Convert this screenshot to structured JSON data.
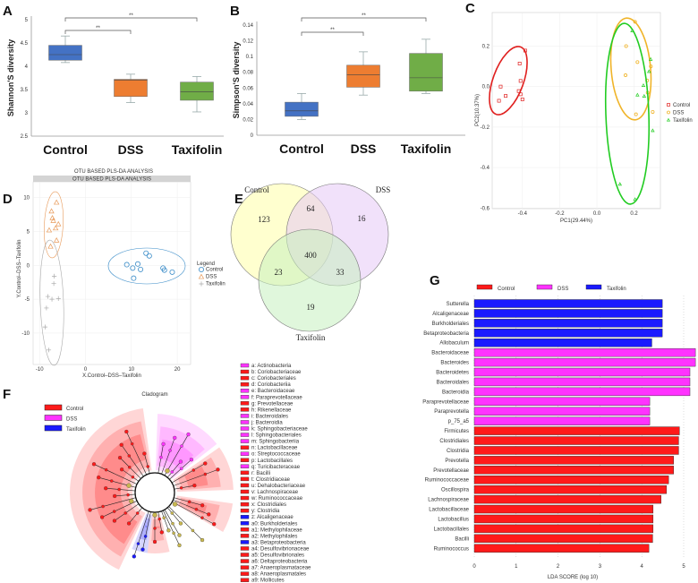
{
  "panel_labels": [
    "A",
    "B",
    "C",
    "D",
    "E",
    "F",
    "G"
  ],
  "chart_data": [
    {
      "panel": "A",
      "type": "box",
      "ylabel": "Shannon'S diversity",
      "categories": [
        "Control",
        "DSS",
        "Taxifolin"
      ],
      "colors": [
        "#4472c4",
        "#ed7d31",
        "#70ad47"
      ],
      "ylim": [
        2.5,
        5
      ],
      "yticks": [
        5,
        4.5,
        4,
        3.5,
        3,
        2.5
      ],
      "boxes": [
        {
          "min": 4.08,
          "q1": 4.13,
          "median": 4.25,
          "q3": 4.45,
          "max": 4.65
        },
        {
          "min": 3.22,
          "q1": 3.35,
          "median": 3.7,
          "q3": 3.72,
          "max": 3.83
        },
        {
          "min": 3.02,
          "q1": 3.27,
          "median": 3.45,
          "q3": 3.66,
          "max": 3.78
        }
      ],
      "significance": [
        {
          "from": "Control",
          "to": "Taxifolin",
          "label": "**"
        },
        {
          "from": "Control",
          "to": "DSS",
          "label": "**"
        }
      ]
    },
    {
      "panel": "B",
      "type": "box",
      "ylabel": "Simpson'S diversity",
      "categories": [
        "Control",
        "DSS",
        "Taxifolin"
      ],
      "colors": [
        "#4472c4",
        "#ed7d31",
        "#70ad47"
      ],
      "ylim": [
        0,
        0.14
      ],
      "yticks": [
        0.14,
        0.12,
        0.1,
        0.08,
        0.06,
        0.04,
        0.02,
        0
      ],
      "boxes": [
        {
          "min": 0.02,
          "q1": 0.024,
          "median": 0.031,
          "q3": 0.042,
          "max": 0.053
        },
        {
          "min": 0.051,
          "q1": 0.061,
          "median": 0.077,
          "q3": 0.089,
          "max": 0.106
        },
        {
          "min": 0.053,
          "q1": 0.056,
          "median": 0.073,
          "q3": 0.104,
          "max": 0.122
        }
      ],
      "significance": [
        {
          "from": "Control",
          "to": "Taxifolin",
          "label": "**"
        },
        {
          "from": "Control",
          "to": "DSS",
          "label": "**"
        }
      ]
    },
    {
      "panel": "C",
      "type": "scatter",
      "xlabel": "PC1(29.44%)",
      "ylabel": "PC2(10.37%)",
      "xticks": [
        -0.4,
        -0.2,
        0.0,
        0.2
      ],
      "xtick_labels": [
        "-0.4",
        "-0.2",
        "0.0",
        "0.2"
      ],
      "yticks": [
        0.2,
        0.0,
        -0.2,
        -0.4,
        -0.6
      ],
      "ytick_labels": [
        "0.2",
        "0.0",
        "-0.2",
        "-0.4",
        "-0.6"
      ],
      "legend_position": "right",
      "series": [
        {
          "name": "Control",
          "marker": "square",
          "color": "#e0201f",
          "points": [
            [
              -0.385,
              0.178
            ],
            [
              -0.415,
              0.114
            ],
            [
              -0.41,
              0.028
            ],
            [
              -0.517,
              0.0
            ],
            [
              -0.42,
              -0.022
            ],
            [
              -0.49,
              -0.046
            ],
            [
              -0.41,
              -0.038
            ],
            [
              -0.4,
              -0.063
            ],
            [
              -0.526,
              -0.07
            ]
          ]
        },
        {
          "name": "DSS",
          "marker": "circle",
          "color": "#f0b429",
          "points": [
            [
              0.205,
              0.32
            ],
            [
              0.157,
              0.2
            ],
            [
              0.218,
              0.121
            ],
            [
              0.154,
              0.056
            ],
            [
              0.29,
              0.1
            ],
            [
              0.27,
              0.03
            ],
            [
              0.273,
              -0.03
            ],
            [
              0.21,
              -0.137
            ],
            [
              0.3,
              -0.125
            ]
          ]
        },
        {
          "name": "Taxifolin",
          "marker": "triangle",
          "color": "#22cc22",
          "points": [
            [
              0.19,
              0.276
            ],
            [
              0.289,
              0.135
            ],
            [
              0.28,
              0.075
            ],
            [
              0.25,
              0.006
            ],
            [
              0.218,
              -0.041
            ],
            [
              0.254,
              -0.047
            ],
            [
              0.3,
              -0.217
            ],
            [
              0.124,
              -0.482
            ],
            [
              0.205,
              -0.557
            ]
          ]
        }
      ]
    },
    {
      "panel": "D",
      "type": "scatter",
      "title": "OTU BASED PLS-DA ANALYSIS",
      "strip": "OTU BASED PLS-DA ANALYSIS",
      "xlabel": "X.Control–DSS–Taxifolin",
      "ylabel": "Y.Control–DSS–Taxifolin",
      "xticks": [
        -10,
        0,
        10,
        20
      ],
      "yticks": [
        10,
        5,
        0,
        -5,
        -10
      ],
      "legend_title": "Legend",
      "legend_position": "right",
      "series": [
        {
          "name": "Control",
          "marker": "circle",
          "color": "#3a8cc8",
          "points": [
            [
              9.0,
              0.1
            ],
            [
              10.3,
              -0.4
            ],
            [
              11.4,
              0.2
            ],
            [
              12.0,
              -0.6
            ],
            [
              10.5,
              -1.9
            ],
            [
              13.2,
              1.8
            ],
            [
              13.9,
              1.4
            ],
            [
              16.9,
              -0.4
            ],
            [
              17.2,
              -0.7
            ],
            [
              18.9,
              -1.0
            ]
          ]
        },
        {
          "name": "DSS",
          "marker": "triangle",
          "color": "#e89a5a",
          "points": [
            [
              -6.3,
              9.3
            ],
            [
              -7.4,
              8.0
            ],
            [
              -7.2,
              7.0
            ],
            [
              -7.0,
              6.6
            ],
            [
              -5.9,
              6.1
            ],
            [
              -6.5,
              5.5
            ],
            [
              -7.9,
              5.2
            ],
            [
              -6.3,
              3.7
            ],
            [
              -7.6,
              2.8
            ]
          ]
        },
        {
          "name": "Taxifolin",
          "marker": "cross",
          "color": "#aaaaaa",
          "points": [
            [
              -6.8,
              -1.6
            ],
            [
              -6.9,
              -2.7
            ],
            [
              -8.2,
              -4.6
            ],
            [
              -7.3,
              -5.0
            ],
            [
              -5.9,
              -4.9
            ],
            [
              -8.5,
              -6.3
            ],
            [
              -8.8,
              -9.1
            ],
            [
              -8.0,
              -12.5
            ]
          ]
        }
      ]
    },
    {
      "panel": "E",
      "type": "venn",
      "sets": [
        {
          "name": "Control",
          "color": "#ffffa8"
        },
        {
          "name": "DSS",
          "color": "#e6c8f5"
        },
        {
          "name": "Taxifolin",
          "color": "#c6f0c0"
        }
      ],
      "regions": {
        "Control_only": 123,
        "DSS_only": 16,
        "Taxifolin_only": 19,
        "Control_DSS": 64,
        "Control_Taxifolin": 23,
        "DSS_Taxifolin": 33,
        "all": 400
      }
    },
    {
      "panel": "F",
      "type": "cladogram",
      "title": "Cladogram",
      "legend": [
        {
          "name": "Control",
          "color": "#ff1a1a"
        },
        {
          "name": "DSS",
          "color": "#ff33ff"
        },
        {
          "name": "Taxifolin",
          "color": "#1a1aff"
        }
      ],
      "taxa": [
        {
          "label": "a: Actinobacteria",
          "group": "DSS"
        },
        {
          "label": "b: Coriobacteriaceae",
          "group": "Control"
        },
        {
          "label": "c: Coriobacteriales",
          "group": "Control"
        },
        {
          "label": "d: Coriobacteriia",
          "group": "Control"
        },
        {
          "label": "e: Bacteroidaceae",
          "group": "DSS"
        },
        {
          "label": "f: Paraprevotellaceae",
          "group": "DSS"
        },
        {
          "label": "g: Prevotellaceae",
          "group": "Control"
        },
        {
          "label": "h: Rikenellaceae",
          "group": "Control"
        },
        {
          "label": "i: Bacteroidales",
          "group": "DSS"
        },
        {
          "label": "j: Bacteroidia",
          "group": "DSS"
        },
        {
          "label": "k: Sphingobacteriaceae",
          "group": "DSS"
        },
        {
          "label": "l: Sphingobacteriales",
          "group": "DSS"
        },
        {
          "label": "m: Sphingobacteriia",
          "group": "DSS"
        },
        {
          "label": "n: Lactobacillaceae",
          "group": "Control"
        },
        {
          "label": "o: Streptococcaceae",
          "group": "DSS"
        },
        {
          "label": "p: Lactobacillales",
          "group": "Control"
        },
        {
          "label": "q: Turicibacteraceae",
          "group": "DSS"
        },
        {
          "label": "r: Bacilli",
          "group": "Control"
        },
        {
          "label": "t: Clostridiaceae",
          "group": "Control"
        },
        {
          "label": "u: Dehalobacteriaceae",
          "group": "Control"
        },
        {
          "label": "v: Lachnospiraceae",
          "group": "Control"
        },
        {
          "label": "w: Ruminococcaceae",
          "group": "Control"
        },
        {
          "label": "x: Clostridiales",
          "group": "Control"
        },
        {
          "label": "y: Clostridia",
          "group": "Control"
        },
        {
          "label": "z: Alcaligenaceae",
          "group": "Taxifolin"
        },
        {
          "label": "a0: Burkholderiales",
          "group": "Taxifolin"
        },
        {
          "label": "a1: Methylophilaceae",
          "group": "Control"
        },
        {
          "label": "a2: Methylophilales",
          "group": "Control"
        },
        {
          "label": "a3: Betaproteobacteria",
          "group": "Taxifolin"
        },
        {
          "label": "a4: Desulfovibrionaceae",
          "group": "Control"
        },
        {
          "label": "a5: Desulfovibrionales",
          "group": "Control"
        },
        {
          "label": "a6: Deltaproteobacteria",
          "group": "Control"
        },
        {
          "label": "a7: Anaeroplasmataceae",
          "group": "Control"
        },
        {
          "label": "a8: Anaeroplasmatales",
          "group": "Control"
        },
        {
          "label": "a9: Mollicutes",
          "group": "Control"
        }
      ]
    },
    {
      "panel": "G",
      "type": "bar",
      "orientation": "horizontal",
      "xlabel": "LDA SCORE (log 10)",
      "xticks": [
        0,
        1,
        2,
        3,
        4,
        5
      ],
      "legend": [
        {
          "name": "Control",
          "color": "#ff1a1a"
        },
        {
          "name": "DSS",
          "color": "#ff33ff"
        },
        {
          "name": "Taxifolin",
          "color": "#1a1aff"
        }
      ],
      "legend_position": "top",
      "bars": [
        {
          "label": "Sutterella",
          "group": "Taxifolin",
          "value": 4.49
        },
        {
          "label": "Alcaligenaceae",
          "group": "Taxifolin",
          "value": 4.49
        },
        {
          "label": "Burkholderiales",
          "group": "Taxifolin",
          "value": 4.49
        },
        {
          "label": "Betaproteobacteria",
          "group": "Taxifolin",
          "value": 4.49
        },
        {
          "label": "Allobaculum",
          "group": "Taxifolin",
          "value": 4.24
        },
        {
          "label": "Bacteroidaceae",
          "group": "DSS",
          "value": 5.28
        },
        {
          "label": "Bacteroides",
          "group": "DSS",
          "value": 5.28
        },
        {
          "label": "Bacteroidetes",
          "group": "DSS",
          "value": 5.15
        },
        {
          "label": "Bacteroidales",
          "group": "DSS",
          "value": 5.15
        },
        {
          "label": "Bacteroidia",
          "group": "DSS",
          "value": 5.15
        },
        {
          "label": "Paraprevotellaceae",
          "group": "DSS",
          "value": 4.19
        },
        {
          "label": "Paraprevotella",
          "group": "DSS",
          "value": 4.19
        },
        {
          "label": "p_75_a5",
          "group": "DSS",
          "value": 4.19
        },
        {
          "label": "Firmicutes",
          "group": "Control",
          "value": 4.9
        },
        {
          "label": "Clostridiales",
          "group": "Control",
          "value": 4.88
        },
        {
          "label": "Clostridia",
          "group": "Control",
          "value": 4.88
        },
        {
          "label": "Prevotella",
          "group": "Control",
          "value": 4.76
        },
        {
          "label": "Prevotellaceae",
          "group": "Control",
          "value": 4.76
        },
        {
          "label": "Ruminococcaceae",
          "group": "Control",
          "value": 4.64
        },
        {
          "label": "Oscillospira",
          "group": "Control",
          "value": 4.59
        },
        {
          "label": "Lachnospiraceae",
          "group": "Control",
          "value": 4.46
        },
        {
          "label": "Lactobacillaceae",
          "group": "Control",
          "value": 4.27
        },
        {
          "label": "Lactobacillus",
          "group": "Control",
          "value": 4.27
        },
        {
          "label": "Lactobacillales",
          "group": "Control",
          "value": 4.27
        },
        {
          "label": "Bacilli",
          "group": "Control",
          "value": 4.26
        },
        {
          "label": "Ruminococcus",
          "group": "Control",
          "value": 4.17
        }
      ]
    }
  ]
}
